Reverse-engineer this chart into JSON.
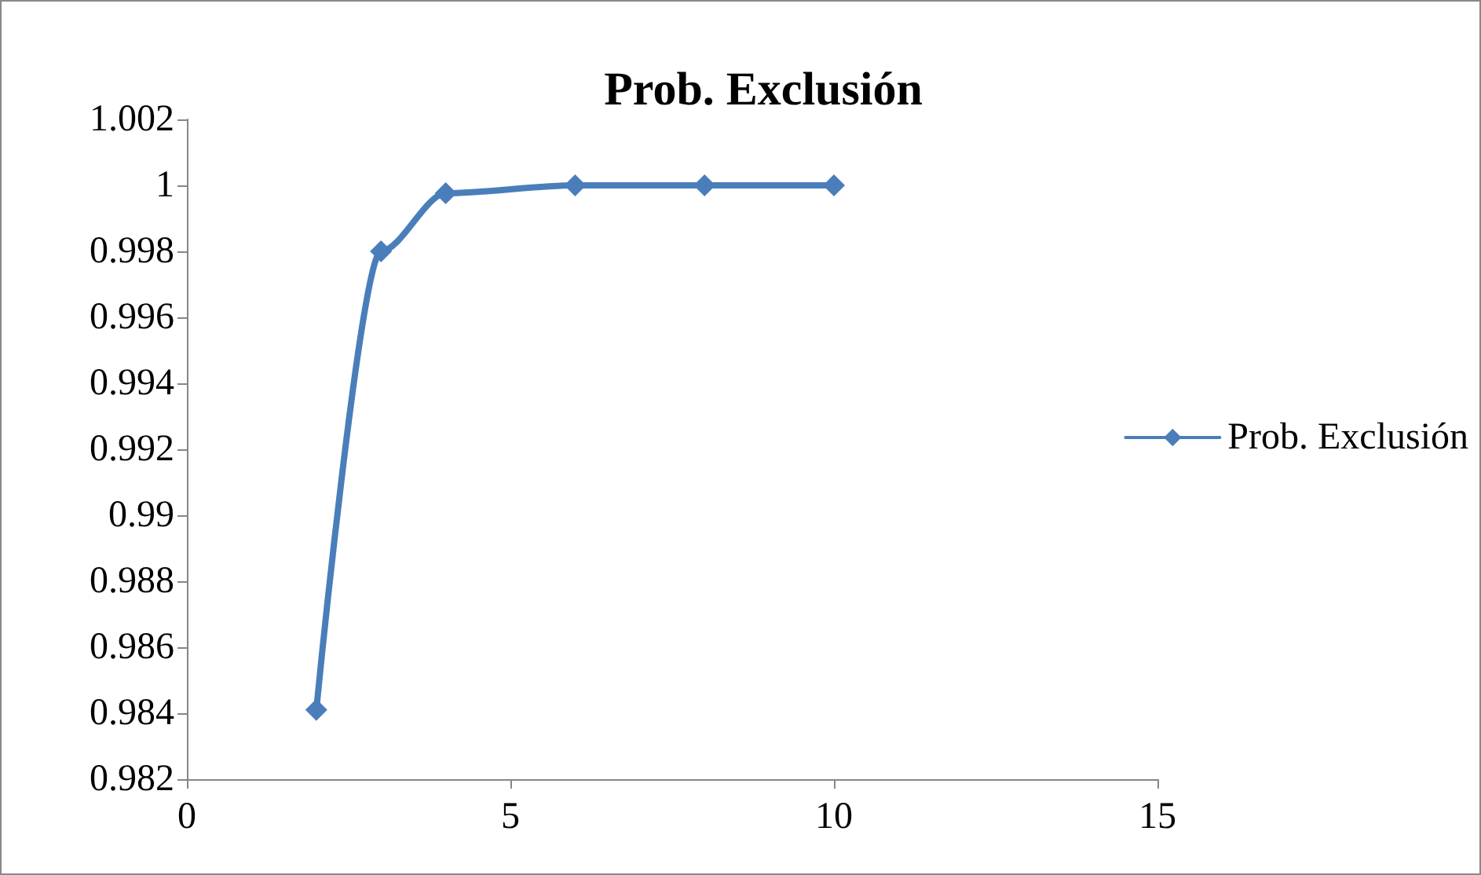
{
  "chart_data": {
    "type": "line",
    "title": "Prob. Exclusión",
    "x": [
      2,
      3,
      4,
      6,
      8,
      10
    ],
    "series": [
      {
        "name": "Prob. Exclusión",
        "color": "#4a7ebb",
        "values": [
          0.9841,
          0.998,
          0.99976,
          1,
          1,
          1
        ]
      }
    ],
    "xlim": [
      0,
      15
    ],
    "xticks": [
      0,
      5,
      10,
      15
    ],
    "ylim": [
      0.982,
      1.002
    ],
    "yticks": [
      0.982,
      0.984,
      0.986,
      0.988,
      0.99,
      0.992,
      0.994,
      0.996,
      0.998,
      1,
      1.002
    ],
    "grid": false,
    "legend": "right",
    "marker": "diamond",
    "line_style": "solid"
  }
}
